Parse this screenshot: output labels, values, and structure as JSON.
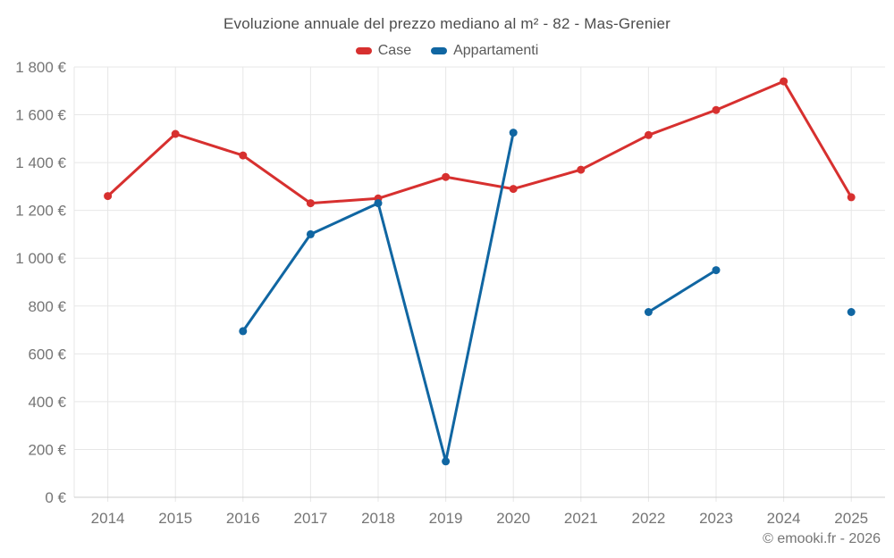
{
  "page": {
    "copyright": "© emooki.fr - 2026"
  },
  "chart_data": {
    "type": "line",
    "title": "Evoluzione annuale del prezzo mediano al m² - 82 - Mas-Grenier",
    "categories": [
      "2014",
      "2015",
      "2016",
      "2017",
      "2018",
      "2019",
      "2020",
      "2021",
      "2022",
      "2023",
      "2024",
      "2025"
    ],
    "series": [
      {
        "name": "Case",
        "color": "#d7302f",
        "values": [
          1260,
          1520,
          1430,
          1230,
          1250,
          1340,
          1290,
          1370,
          1515,
          1620,
          1740,
          1255
        ]
      },
      {
        "name": "Appartamenti",
        "color": "#1066a2",
        "values": [
          null,
          null,
          695,
          1100,
          1230,
          150,
          1525,
          null,
          775,
          950,
          null,
          775
        ]
      }
    ],
    "ylim": [
      0,
      1800
    ],
    "y_tick_step": 200,
    "y_tick_labels": [
      "0 €",
      "200 €",
      "400 €",
      "600 €",
      "800 €",
      "1 000 €",
      "1 200 €",
      "1 400 €",
      "1 600 €",
      "1 800 €"
    ],
    "grid": true,
    "legend_position": "top",
    "colors": {
      "grid": "#e7e7e7",
      "axis_line": "#cccccc",
      "tick_label": "#757575",
      "title_text": "#4c4c4c"
    }
  }
}
